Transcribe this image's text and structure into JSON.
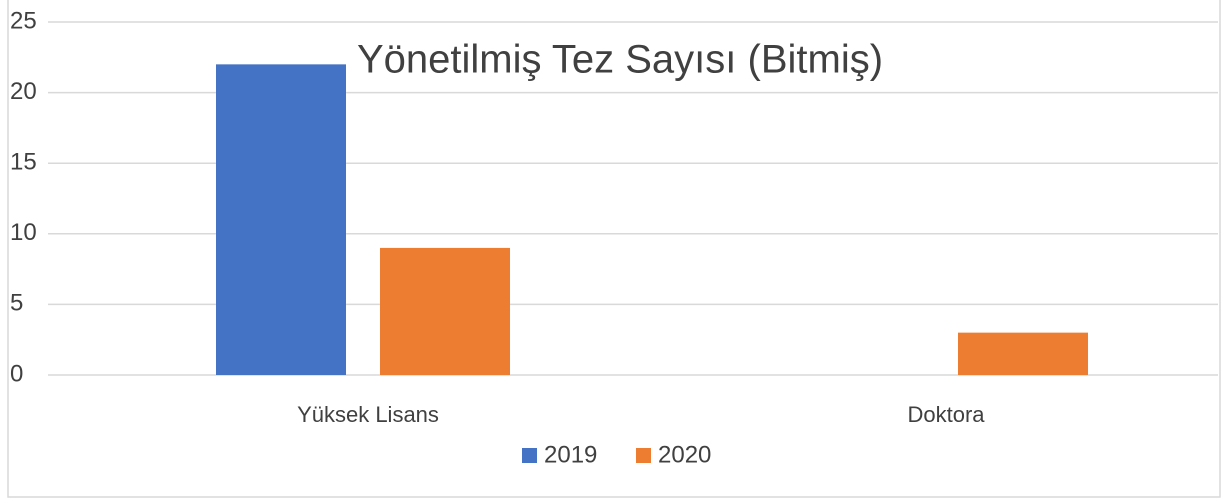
{
  "chart_data": {
    "type": "bar",
    "title": "Yönetilmiş Tez Sayısı (Bitmiş)",
    "categories": [
      "Yüksek Lisans",
      "Doktora"
    ],
    "series": [
      {
        "name": "2019",
        "color": "#4472c4",
        "values": [
          22,
          0
        ]
      },
      {
        "name": "2020",
        "color": "#ed7d31",
        "values": [
          9,
          3
        ]
      }
    ],
    "ylim": [
      0,
      25
    ],
    "yticks": [
      0,
      5,
      10,
      15,
      20,
      25
    ],
    "grid": true,
    "legend": "bottom"
  }
}
